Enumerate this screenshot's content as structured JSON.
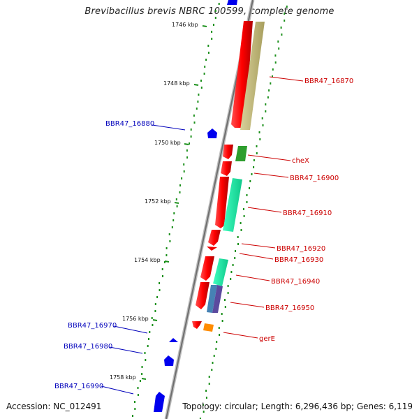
{
  "title": "Brevibacillus brevis NBRC 100599, complete genome",
  "accession": "Accession: NC_012491",
  "stats": "Topology: circular; Length: 6,296,436 bp; Genes: 6,119",
  "ticks": [
    "1746 kbp",
    "1748 kbp",
    "1750 kbp",
    "1752 kbp",
    "1754 kbp",
    "1756 kbp",
    "1758 kbp"
  ],
  "genes_forward": [
    "BBR47_16870",
    "cheX",
    "BBR47_16900",
    "BBR47_16910",
    "BBR47_16920",
    "BBR47_16930",
    "BBR47_16940",
    "BBR47_16950",
    "gerE"
  ],
  "genes_reverse": [
    "BBR47_16880",
    "BBR47_16970",
    "BBR47_16980",
    "BBR47_16990"
  ],
  "colors": {
    "cds": "#ff0000",
    "reverse_cds": "#0000ff",
    "tan": "#c2b97a",
    "green": "#228b22",
    "aquamarine": "#1de9a6",
    "steel": "#4682b4",
    "purple": "#5b4a9e",
    "orange": "#ff8c00",
    "gc_dots": "#1a8f1a"
  }
}
